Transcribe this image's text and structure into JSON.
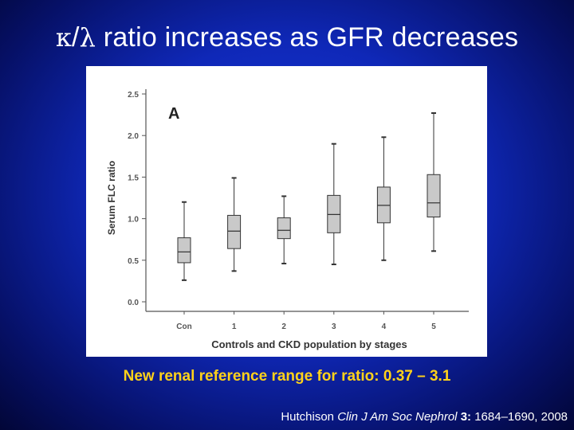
{
  "slide": {
    "title_kappa": "κ",
    "title_slash": "/",
    "title_lambda": "λ",
    "title_rest": " ratio increases as GFR decreases",
    "reference_note": "New renal reference range for ratio: 0.37 – 3.1",
    "citation": {
      "author": "Hutchison ",
      "journal": "Clin J Am Soc Nephrol",
      "volume": " 3:",
      "pages": " 1684–1690, 2008"
    }
  },
  "chart_data": {
    "type": "boxplot",
    "panel_label": "A",
    "xlabel": "Controls and CKD population by stages",
    "ylabel": "Serum FLC ratio",
    "ylim": [
      0.0,
      2.5
    ],
    "yticks": [
      "0.0",
      "0.5",
      "1.0",
      "1.5",
      "2.0",
      "2.5"
    ],
    "grid": false,
    "categories": [
      "Con",
      "1",
      "2",
      "3",
      "4",
      "5"
    ],
    "boxes": [
      {
        "category": "Con",
        "whisker_low": 0.26,
        "q1": 0.47,
        "median": 0.6,
        "q3": 0.77,
        "whisker_high": 1.2
      },
      {
        "category": "1",
        "whisker_low": 0.37,
        "q1": 0.64,
        "median": 0.85,
        "q3": 1.04,
        "whisker_high": 1.49
      },
      {
        "category": "2",
        "whisker_low": 0.46,
        "q1": 0.76,
        "median": 0.86,
        "q3": 1.01,
        "whisker_high": 1.27
      },
      {
        "category": "3",
        "whisker_low": 0.45,
        "q1": 0.83,
        "median": 1.05,
        "q3": 1.28,
        "whisker_high": 1.9
      },
      {
        "category": "4",
        "whisker_low": 0.5,
        "q1": 0.95,
        "median": 1.16,
        "q3": 1.38,
        "whisker_high": 1.98
      },
      {
        "category": "5",
        "whisker_low": 0.61,
        "q1": 1.02,
        "median": 1.19,
        "q3": 1.53,
        "whisker_high": 2.27
      }
    ],
    "colors": {
      "box_fill": "#c9c9c9",
      "box_stroke": "#333333",
      "axis": "#555555"
    }
  }
}
